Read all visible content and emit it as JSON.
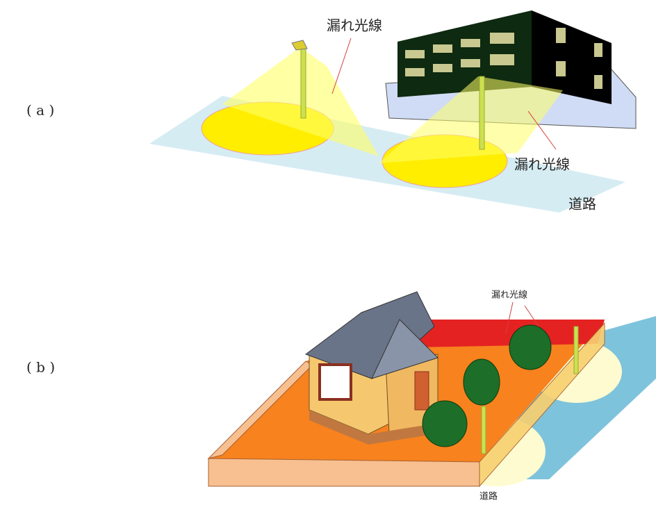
{
  "panels": [
    {
      "label": "( a )",
      "annotations": [
        "漏れ光線",
        "漏れ光線",
        "道路"
      ]
    },
    {
      "label": "( b )",
      "annotations": [
        "漏れ光線",
        "道路"
      ]
    }
  ]
}
